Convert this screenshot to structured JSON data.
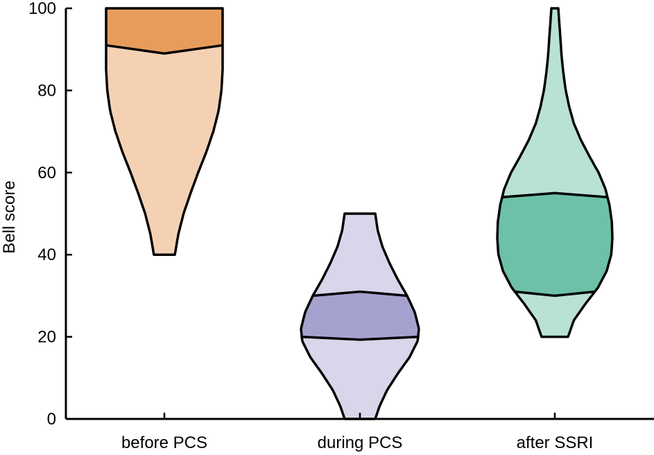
{
  "chart_data": {
    "type": "violin",
    "title": "",
    "xlabel": "",
    "ylabel": "Bell score",
    "ylim": [
      0,
      100
    ],
    "yticks": [
      0,
      20,
      40,
      60,
      80,
      100
    ],
    "grid": false,
    "legend": "none",
    "categories": [
      "before PCS",
      "during PCS",
      "after SSRI"
    ],
    "series": [
      {
        "category": "before PCS",
        "min": 40,
        "max": 100,
        "q1": 89,
        "median": null,
        "q3": 100,
        "quartile_band": {
          "lower_left": 91,
          "lower_mid": 89,
          "lower_right": 91,
          "upper": 100
        },
        "profile_y": [
          40,
          45,
          50,
          55,
          60,
          65,
          70,
          75,
          80,
          85,
          90,
          95,
          100
        ],
        "profile_w": [
          0.18,
          0.24,
          0.33,
          0.45,
          0.58,
          0.72,
          0.84,
          0.93,
          0.98,
          1.0,
          1.0,
          1.0,
          1.0
        ],
        "fill_light": "#f5d1b4",
        "fill_dark": "#e79c5c"
      },
      {
        "category": "during PCS",
        "min": 0,
        "max": 50,
        "q1": 20,
        "median": null,
        "q3": 30,
        "quartile_band": {
          "lower_left": 20,
          "lower_mid": 19.3,
          "lower_right": 20,
          "upper_left": 30,
          "upper_mid": 31,
          "upper_right": 30
        },
        "profile_y": [
          0,
          3,
          7,
          11,
          15,
          19,
          22,
          26,
          30,
          34,
          38,
          42,
          46,
          50
        ],
        "profile_w": [
          0.26,
          0.33,
          0.46,
          0.64,
          0.84,
          0.98,
          1.0,
          0.93,
          0.8,
          0.64,
          0.5,
          0.38,
          0.3,
          0.26
        ],
        "fill_light": "#d8d6ea",
        "fill_dark": "#a6a2cf"
      },
      {
        "category": "after SSRI",
        "min": 20,
        "max": 100,
        "q1": 31,
        "median": null,
        "q3": 54,
        "quartile_band": {
          "lower_left": 31,
          "lower_mid": 30,
          "lower_right": 31,
          "upper_left": 54,
          "upper_mid": 55,
          "upper_right": 54
        },
        "profile_y": [
          20,
          24,
          28,
          32,
          36,
          40,
          44,
          48,
          52,
          56,
          60,
          64,
          68,
          72,
          76,
          80,
          84,
          88,
          92,
          96,
          100
        ],
        "profile_w": [
          0.23,
          0.33,
          0.53,
          0.75,
          0.9,
          0.98,
          1.0,
          0.99,
          0.95,
          0.88,
          0.76,
          0.6,
          0.45,
          0.33,
          0.25,
          0.19,
          0.15,
          0.12,
          0.1,
          0.08,
          0.06
        ],
        "fill_light": "#b9e1d5",
        "fill_dark": "#6cc1a8"
      }
    ]
  }
}
